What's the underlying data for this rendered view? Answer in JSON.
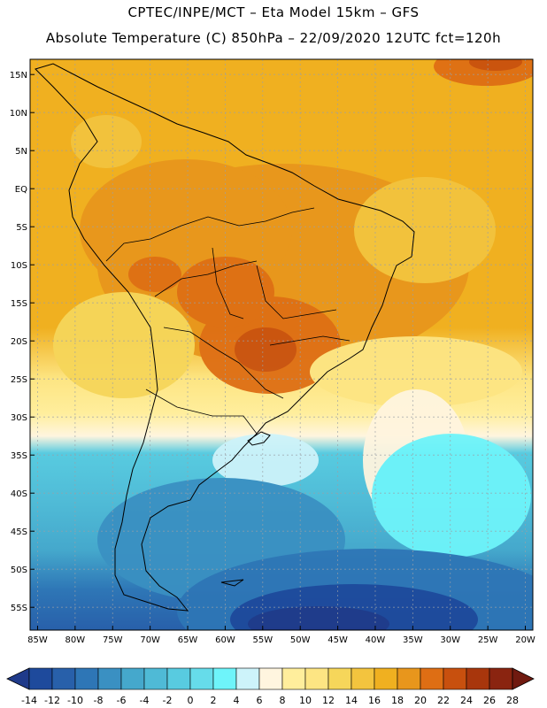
{
  "header": {
    "line1": "CPTEC/INPE/MCT –  Eta Model 15km – GFS",
    "line2": "Absolute Temperature (C) 850hPa – 22/09/2020 12UTC fct=120h"
  },
  "map": {
    "lat_labels": [
      "15N",
      "10N",
      "5N",
      "EQ",
      "5S",
      "10S",
      "15S",
      "20S",
      "25S",
      "30S",
      "35S",
      "40S",
      "45S",
      "50S",
      "55S"
    ],
    "lat_values": [
      15,
      10,
      5,
      0,
      -5,
      -10,
      -15,
      -20,
      -25,
      -30,
      -35,
      -40,
      -45,
      -50,
      -55
    ],
    "lon_labels": [
      "85W",
      "80W",
      "75W",
      "70W",
      "65W",
      "60W",
      "55W",
      "50W",
      "45W",
      "40W",
      "35W",
      "30W",
      "25W",
      "20W"
    ],
    "lon_values": [
      -85,
      -80,
      -75,
      -70,
      -65,
      -60,
      -55,
      -50,
      -45,
      -40,
      -35,
      -30,
      -25,
      -20
    ],
    "lat_range": [
      -58,
      17
    ],
    "lon_range": [
      -86,
      -19
    ]
  },
  "colorbar": {
    "labels": [
      "-14",
      "-12",
      "-10",
      "-8",
      "-6",
      "-4",
      "-2",
      "0",
      "2",
      "4",
      "6",
      "8",
      "10",
      "12",
      "14",
      "16",
      "18",
      "20",
      "22",
      "24",
      "26",
      "28"
    ],
    "colors": [
      "#1f3a8a",
      "#1e4a9c",
      "#2860aa",
      "#2e76b6",
      "#3a90c2",
      "#45a8cc",
      "#4fbad6",
      "#58cbe0",
      "#66dcea",
      "#6ef4fa",
      "#cdf3fa",
      "#fff5df",
      "#ffee9c",
      "#fde583",
      "#f6d65a",
      "#f3c43e",
      "#f0b020",
      "#e8961c",
      "#de6e14",
      "#c8500e",
      "#a8360c",
      "#8a2410",
      "#701a10"
    ]
  }
}
